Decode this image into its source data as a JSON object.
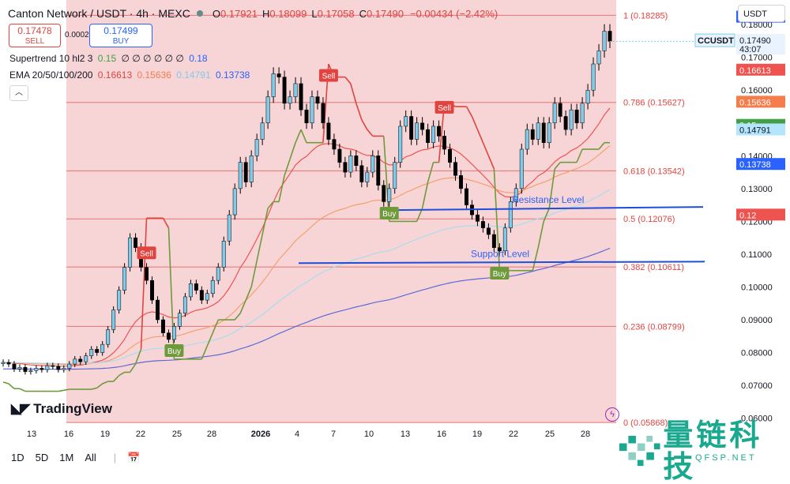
{
  "header": {
    "symbol_title": "Canton Network / USDT · 4h · MEXC",
    "o_label": "O",
    "o_value": "0.17921",
    "h_label": "H",
    "h_value": "0.18099",
    "l_label": "L",
    "l_value": "0.17058",
    "c_label": "C",
    "c_value": "0.17490",
    "change": "−0.00434 (−2.42%)"
  },
  "trade": {
    "sell_price": "0.17478",
    "sell_label": "SELL",
    "spread": "0.00021",
    "buy_price": "0.17499",
    "buy_label": "BUY"
  },
  "indicators": {
    "supertrend_label": "Supertrend 10 hl2 3",
    "supertrend_up": "0.15",
    "supertrend_blanks": "∅ ∅ ∅ ∅ ∅ ∅",
    "supertrend_down": "0.18",
    "ema_label": "EMA 20/50/100/200",
    "ema_values": [
      "0.16613",
      "0.15636",
      "0.14791",
      "0.13738"
    ]
  },
  "currency_button": "USDT",
  "price_axis": {
    "ticks": [
      "0.18000",
      "0.17000",
      "0.16000",
      "0.15000",
      "0.14000",
      "0.13000",
      "0.12000",
      "0.11000",
      "0.10000",
      "0.09000",
      "0.08000",
      "0.07000",
      "0.06000"
    ],
    "labels": [
      {
        "text": "0.18",
        "value": 0.1823,
        "color": "#2962ff",
        "name": "supertrend-down-tag"
      },
      {
        "text": "0.17490",
        "value": 0.1752,
        "color": "#e8f3ff",
        "text_color": "#131722",
        "name": "last-price-tag",
        "sub": "43:07"
      },
      {
        "text": "0.16613",
        "value": 0.16613,
        "color": "#ef5350",
        "name": "ema20-tag"
      },
      {
        "text": "0.15636",
        "value": 0.15636,
        "color": "#f57c4b",
        "name": "ema50-tag"
      },
      {
        "text": "0.15",
        "value": 0.1493,
        "color": "#43a047",
        "name": "supertrend-up-tag"
      },
      {
        "text": "0.14791",
        "value": 0.14791,
        "color": "#b3e5fc",
        "text_color": "#131722",
        "name": "ema100-tag"
      },
      {
        "text": "0.13738",
        "value": 0.13738,
        "color": "#2962ff",
        "name": "ema200-tag"
      },
      {
        "text": "0.12",
        "value": 0.12195,
        "color": "#ef5350",
        "name": "red-level-tag"
      }
    ],
    "symbol_tag": "CCUSDT"
  },
  "time_axis": [
    "13",
    "16",
    "19",
    "22",
    "25",
    "28",
    "2026",
    "4",
    "7",
    "10",
    "13",
    "16",
    "19",
    "22",
    "25",
    "28"
  ],
  "bottom_bar": {
    "ranges": [
      "1D",
      "5D",
      "1M",
      "All"
    ]
  },
  "branding": {
    "tv": "TradingView",
    "wm_name": "量链科技",
    "wm_sub": "QFSP.NET"
  },
  "chart_data": {
    "type": "candlestick",
    "ylim": [
      0.0575,
      0.1875
    ],
    "fib_levels": [
      {
        "label": "1 (0.18285)",
        "value": 0.18285
      },
      {
        "label": "0.786 (0.15627)",
        "value": 0.15627
      },
      {
        "label": "0.618 (0.13542)",
        "value": 0.13542
      },
      {
        "label": "0.5 (0.12076)",
        "value": 0.12076
      },
      {
        "label": "0.382 (0.10611)",
        "value": 0.10611
      },
      {
        "label": "0.236 (0.08799)",
        "value": 0.08799
      },
      {
        "label": "0 (0.05868)",
        "value": 0.05868
      }
    ],
    "annotations": [
      {
        "text": "Resistance Level",
        "value": 0.1244
      },
      {
        "text": "Support Level",
        "value": 0.1075
      }
    ],
    "signals": [
      {
        "text": "Sell",
        "x_index": 26,
        "price": 0.1104
      },
      {
        "text": "Buy",
        "x_index": 31,
        "price": 0.0806
      },
      {
        "text": "Sell",
        "x_index": 59,
        "price": 0.1645
      },
      {
        "text": "Buy",
        "x_index": 70,
        "price": 0.1225
      },
      {
        "text": "Sell",
        "x_index": 80,
        "price": 0.1548
      },
      {
        "text": "Buy",
        "x_index": 90,
        "price": 0.1042
      }
    ],
    "closes": [
      0.077,
      0.0765,
      0.075,
      0.0755,
      0.0742,
      0.0745,
      0.0752,
      0.0748,
      0.076,
      0.0758,
      0.0748,
      0.0752,
      0.0765,
      0.078,
      0.0772,
      0.079,
      0.081,
      0.08,
      0.0825,
      0.087,
      0.093,
      0.099,
      0.106,
      0.115,
      0.112,
      0.106,
      0.102,
      0.096,
      0.09,
      0.086,
      0.084,
      0.088,
      0.092,
      0.097,
      0.101,
      0.099,
      0.096,
      0.098,
      0.102,
      0.106,
      0.114,
      0.122,
      0.13,
      0.138,
      0.132,
      0.14,
      0.145,
      0.15,
      0.158,
      0.165,
      0.164,
      0.156,
      0.158,
      0.162,
      0.154,
      0.15,
      0.158,
      0.156,
      0.15,
      0.145,
      0.142,
      0.138,
      0.135,
      0.14,
      0.137,
      0.132,
      0.135,
      0.14,
      0.131,
      0.126,
      0.13,
      0.138,
      0.149,
      0.152,
      0.145,
      0.15,
      0.148,
      0.144,
      0.149,
      0.146,
      0.142,
      0.138,
      0.134,
      0.13,
      0.125,
      0.122,
      0.12,
      0.118,
      0.116,
      0.112,
      0.111,
      0.118,
      0.126,
      0.13,
      0.142,
      0.148,
      0.145,
      0.15,
      0.144,
      0.15,
      0.156,
      0.152,
      0.148,
      0.154,
      0.15,
      0.156,
      0.16,
      0.168,
      0.172,
      0.178,
      0.1749
    ]
  }
}
